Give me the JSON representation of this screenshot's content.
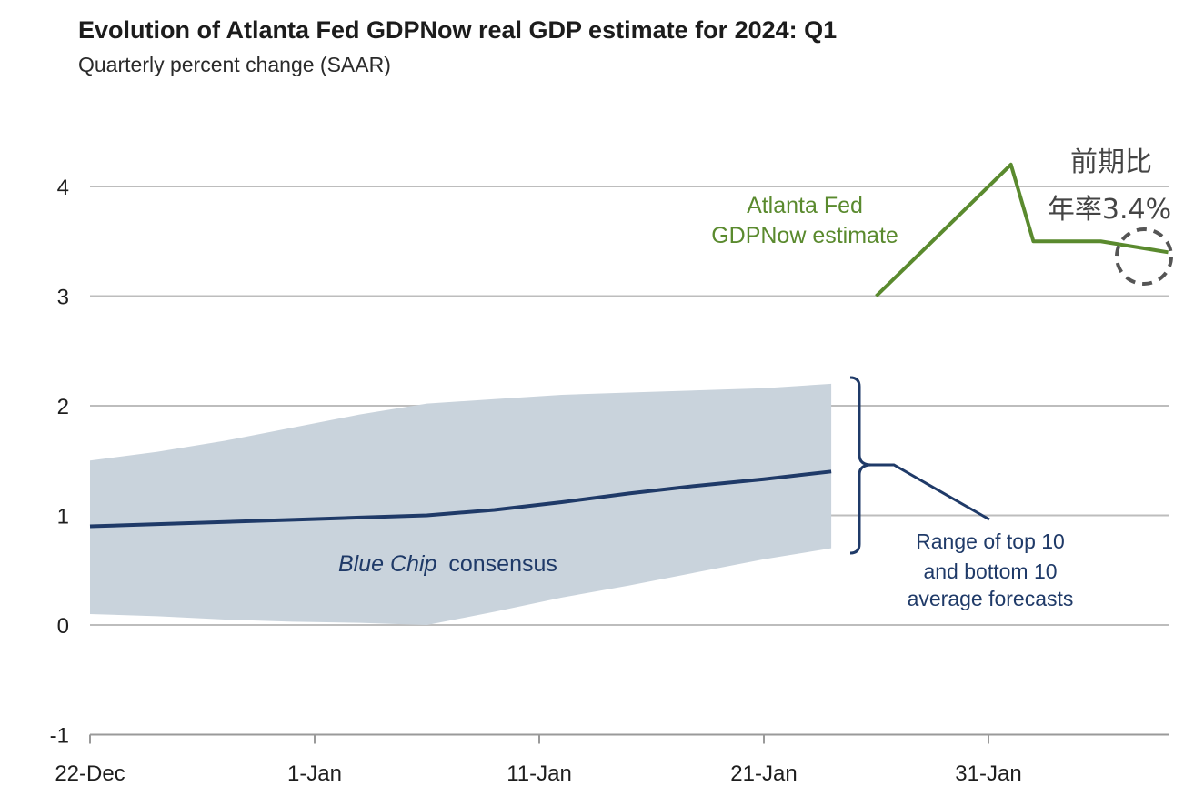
{
  "chart_data": {
    "type": "line",
    "title": "Evolution of Atlanta Fed GDPNow real GDP estimate for 2024: Q1",
    "subtitle": "Quarterly percent change (SAAR)",
    "ylim": [
      -1,
      4.6
    ],
    "yticks": [
      "4",
      "3",
      "2",
      "1",
      "0",
      "-1"
    ],
    "ytick_values": [
      4,
      3,
      2,
      1,
      0,
      -1
    ],
    "xticks": [
      "22-Dec",
      "1-Jan",
      "11-Jan",
      "21-Jan",
      "31-Jan"
    ],
    "xtick_values": [
      0,
      10,
      20,
      30,
      40
    ],
    "xlim": [
      0,
      48
    ],
    "x_unit": "days since 22-Dec",
    "grid": true,
    "series": [
      {
        "name": "Atlanta Fed GDPNow estimate",
        "color": "#5a8a2e",
        "x": [
          35,
          41,
          42,
          45,
          48
        ],
        "y": [
          3.0,
          4.2,
          3.5,
          3.5,
          3.4
        ]
      },
      {
        "name": "Blue Chip consensus",
        "color": "#1f3a68",
        "x": [
          0,
          3,
          6,
          9,
          12,
          15,
          18,
          21,
          24,
          27,
          30,
          33
        ],
        "y": [
          0.9,
          0.92,
          0.94,
          0.96,
          0.98,
          1.0,
          1.05,
          1.12,
          1.2,
          1.27,
          1.33,
          1.4
        ]
      }
    ],
    "band": {
      "name": "Range of top 10 and bottom 10 average forecasts",
      "color": "#c9d3dc",
      "x": [
        0,
        3,
        6,
        9,
        12,
        15,
        18,
        21,
        24,
        27,
        30,
        33
      ],
      "upper": [
        1.5,
        1.58,
        1.68,
        1.8,
        1.92,
        2.02,
        2.06,
        2.1,
        2.12,
        2.14,
        2.16,
        2.2
      ],
      "lower": [
        0.1,
        0.08,
        0.05,
        0.03,
        0.02,
        0.0,
        0.12,
        0.25,
        0.36,
        0.48,
        0.6,
        0.7
      ]
    },
    "annotations": {
      "gdpnow_line1": "Atlanta Fed",
      "gdpnow_line2": "GDPNow estimate",
      "bluechip_italic": "Blue Chip",
      "bluechip_rest": "consensus",
      "range_line1": "Range of top 10",
      "range_line2": "and bottom 10",
      "range_line3": "average forecasts",
      "jp_line1": "前期比",
      "jp_line2": "年率3.4%"
    }
  }
}
